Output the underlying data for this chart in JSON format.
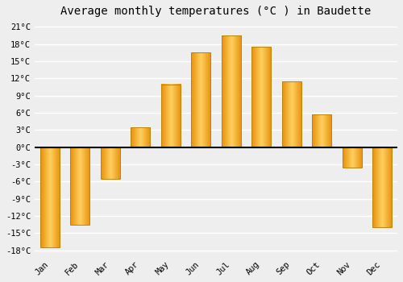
{
  "months": [
    "Jan",
    "Feb",
    "Mar",
    "Apr",
    "May",
    "Jun",
    "Jul",
    "Aug",
    "Sep",
    "Oct",
    "Nov",
    "Dec"
  ],
  "values": [
    -17.5,
    -13.5,
    -5.5,
    3.5,
    11.0,
    16.5,
    19.5,
    17.5,
    11.5,
    5.7,
    -3.5,
    -14.0
  ],
  "bar_color": "#FDB827",
  "bar_edge_color": "#B8860B",
  "title": "Average monthly temperatures (°C ) in Baudette",
  "ylim": [
    -19,
    22
  ],
  "yticks": [
    -18,
    -15,
    -12,
    -9,
    -6,
    -3,
    0,
    3,
    6,
    9,
    12,
    15,
    18,
    21
  ],
  "ytick_labels": [
    "-18°C",
    "-15°C",
    "-12°C",
    "-9°C",
    "-6°C",
    "-3°C",
    "0°C",
    "3°C",
    "6°C",
    "9°C",
    "12°C",
    "15°C",
    "18°C",
    "21°C"
  ],
  "background_color": "#eeeeee",
  "grid_color": "#ffffff",
  "title_fontsize": 10,
  "tick_fontsize": 7.5,
  "bar_width": 0.65,
  "gradient_left": "#E8900A",
  "gradient_center": "#FFD060",
  "gradient_right": "#E8900A"
}
